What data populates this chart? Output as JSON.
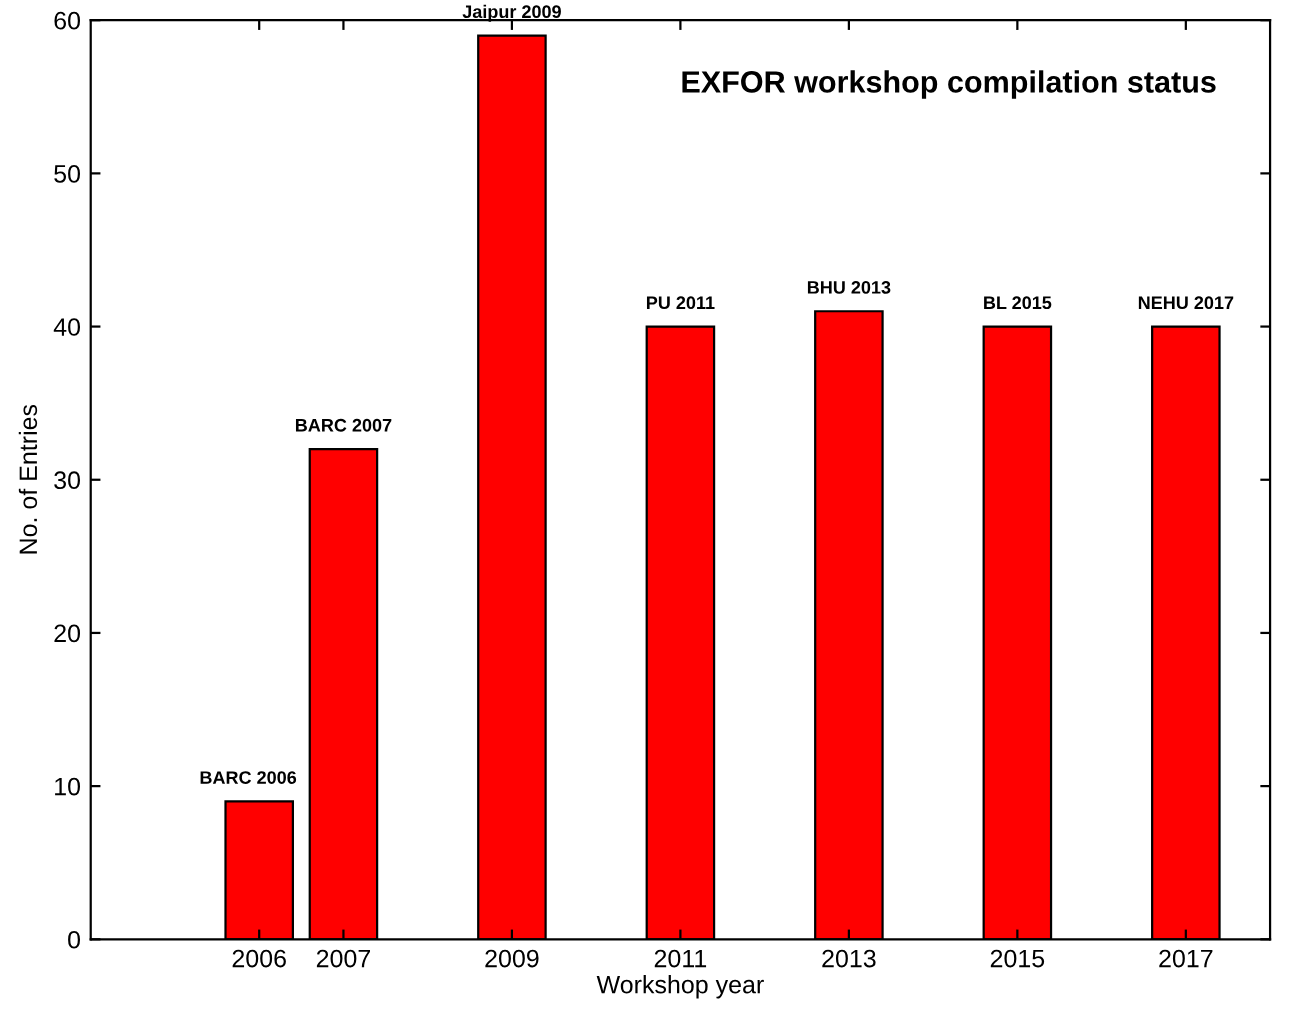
{
  "chart_data": {
    "type": "bar",
    "title": "EXFOR workshop compilation status",
    "xlabel": "Workshop year",
    "ylabel": "No. of Entries",
    "x": [
      2006,
      2007,
      2009,
      2011,
      2013,
      2015,
      2017
    ],
    "values": [
      9,
      32,
      59,
      40,
      41,
      40,
      40
    ],
    "color": "#ff0000",
    "annotations": [
      {
        "text": "BARC 2006",
        "x": 2006,
        "y": 9
      },
      {
        "text": "BARC 2007",
        "x": 2007,
        "y": 32
      },
      {
        "text": "Jaipur 2009",
        "x": 2009,
        "y": 59
      },
      {
        "text": "PU 2011",
        "x": 2011,
        "y": 40
      },
      {
        "text": "BHU 2013",
        "x": 2013,
        "y": 41
      },
      {
        "text": "BL 2015",
        "x": 2015,
        "y": 40
      },
      {
        "text": "NEHU 2017",
        "x": 2017,
        "y": 40
      }
    ],
    "xlim": [
      2004,
      2018
    ],
    "xticks": [
      2006,
      2007,
      2009,
      2011,
      2013,
      2015,
      2017
    ],
    "ylim": [
      0,
      60
    ],
    "yticks": [
      0,
      10,
      20,
      30,
      40,
      50,
      60
    ],
    "grid": false,
    "legend": false
  }
}
